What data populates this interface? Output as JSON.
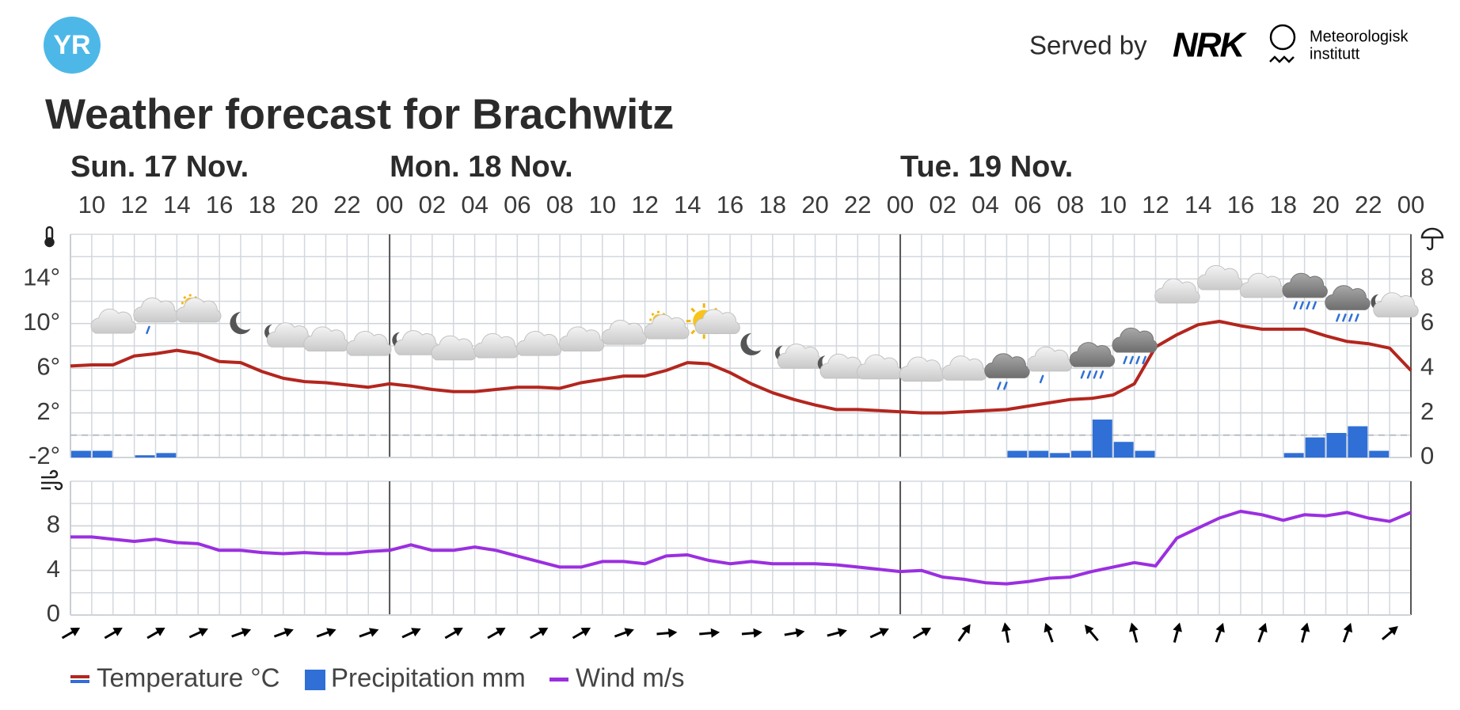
{
  "header": {
    "logo": "YR",
    "served_by": "Served by",
    "nrk": "NRK",
    "met": [
      "Meteorologisk",
      "institutt"
    ],
    "title": "Weather forecast for Brachwitz"
  },
  "chart_data": [
    {
      "type": "line",
      "days": [
        {
          "value": 0,
          "label": "Sun. 17 Nov."
        },
        {
          "value": 15,
          "label": "Mon. 18 Nov."
        },
        {
          "value": 39,
          "label": "Tue. 19 Nov."
        }
      ],
      "xlim": [
        0,
        63
      ],
      "xticks": [
        {
          "value": 1,
          "label": "10"
        },
        {
          "value": 3,
          "label": "12"
        },
        {
          "value": 5,
          "label": "14"
        },
        {
          "value": 7,
          "label": "16"
        },
        {
          "value": 9,
          "label": "18"
        },
        {
          "value": 11,
          "label": "20"
        },
        {
          "value": 13,
          "label": "22"
        },
        {
          "value": 15,
          "label": "00"
        },
        {
          "value": 17,
          "label": "02"
        },
        {
          "value": 19,
          "label": "04"
        },
        {
          "value": 21,
          "label": "06"
        },
        {
          "value": 23,
          "label": "08"
        },
        {
          "value": 25,
          "label": "10"
        },
        {
          "value": 27,
          "label": "12"
        },
        {
          "value": 29,
          "label": "14"
        },
        {
          "value": 31,
          "label": "16"
        },
        {
          "value": 33,
          "label": "18"
        },
        {
          "value": 35,
          "label": "20"
        },
        {
          "value": 37,
          "label": "22"
        },
        {
          "value": 39,
          "label": "00"
        },
        {
          "value": 41,
          "label": "02"
        },
        {
          "value": 43,
          "label": "04"
        },
        {
          "value": 45,
          "label": "06"
        },
        {
          "value": 47,
          "label": "08"
        },
        {
          "value": 49,
          "label": "10"
        },
        {
          "value": 51,
          "label": "12"
        },
        {
          "value": 53,
          "label": "14"
        },
        {
          "value": 55,
          "label": "16"
        },
        {
          "value": 57,
          "label": "18"
        },
        {
          "value": 59,
          "label": "20"
        },
        {
          "value": 61,
          "label": "22"
        },
        {
          "value": 63,
          "label": "00"
        }
      ],
      "ylim": [
        -2,
        18
      ],
      "yticks": [
        {
          "value": -2,
          "label": "-2°"
        },
        {
          "value": 2,
          "label": "2°"
        },
        {
          "value": 6,
          "label": "6°"
        },
        {
          "value": 10,
          "label": "10°"
        },
        {
          "value": 14,
          "label": "14°"
        }
      ],
      "y2lim": [
        0,
        10
      ],
      "y2ticks": [
        0,
        2,
        4,
        6,
        8
      ],
      "reference_line": 0,
      "grid": true,
      "series": [
        {
          "name": "Temperature °C",
          "color": "#b3261e",
          "values": [
            6.2,
            6.3,
            6.3,
            7.1,
            7.3,
            7.6,
            7.3,
            6.6,
            6.5,
            5.7,
            5.1,
            4.8,
            4.7,
            4.5,
            4.3,
            4.6,
            4.4,
            4.1,
            3.9,
            3.9,
            4.1,
            4.3,
            4.3,
            4.2,
            4.7,
            5.0,
            5.3,
            5.3,
            5.8,
            6.5,
            6.4,
            5.6,
            4.6,
            3.8,
            3.2,
            2.7,
            2.3,
            2.3,
            2.2,
            2.1,
            2.0,
            2.0,
            2.1,
            2.2,
            2.3,
            2.6,
            2.9,
            3.2,
            3.3,
            3.6,
            4.6,
            7.9,
            9.0,
            9.9,
            10.2,
            9.8,
            9.5,
            9.5,
            9.5,
            8.9,
            8.4,
            8.2,
            7.8,
            5.8
          ]
        },
        {
          "name": "Precipitation mm",
          "color": "#2f6fd6",
          "type": "bar",
          "axis": "y2",
          "values": [
            0.3,
            0.3,
            0,
            0.1,
            0.2,
            0,
            0,
            0,
            0,
            0,
            0,
            0,
            0,
            0,
            0,
            0,
            0,
            0,
            0,
            0,
            0,
            0,
            0,
            0,
            0,
            0,
            0,
            0,
            0,
            0,
            0,
            0,
            0,
            0,
            0,
            0,
            0,
            0,
            0,
            0,
            0,
            0,
            0,
            0,
            0.3,
            0.3,
            0.2,
            0.3,
            1.7,
            0.7,
            0.3,
            0,
            0,
            0,
            0,
            0,
            0,
            0.2,
            0.9,
            1.1,
            1.4,
            0.3,
            0
          ]
        }
      ]
    },
    {
      "type": "line",
      "xlim": [
        0,
        63
      ],
      "ylim": [
        0,
        12
      ],
      "yticks": [
        0,
        4,
        8
      ],
      "grid": true,
      "series": [
        {
          "name": "Wind m/s",
          "color": "#9b2fe0",
          "values": [
            7.0,
            7.0,
            6.8,
            6.6,
            6.8,
            6.5,
            6.4,
            5.8,
            5.8,
            5.6,
            5.5,
            5.6,
            5.5,
            5.5,
            5.7,
            5.8,
            6.3,
            5.8,
            5.8,
            6.1,
            5.8,
            5.3,
            4.8,
            4.3,
            4.3,
            4.8,
            4.8,
            4.6,
            5.3,
            5.4,
            4.9,
            4.6,
            4.8,
            4.6,
            4.6,
            4.6,
            4.5,
            4.3,
            4.1,
            3.9,
            4.0,
            3.4,
            3.2,
            2.9,
            2.8,
            3.0,
            3.3,
            3.4,
            3.9,
            4.3,
            4.7,
            4.4,
            6.9,
            7.8,
            8.7,
            9.3,
            9.0,
            8.5,
            9.0,
            8.9,
            9.2,
            8.7,
            8.4,
            9.2
          ]
        }
      ],
      "wind_direction_deg": [
        60,
        60,
        60,
        65,
        70,
        70,
        70,
        70,
        65,
        60,
        60,
        60,
        60,
        70,
        85,
        85,
        85,
        80,
        75,
        65,
        60,
        35,
        350,
        340,
        320,
        345,
        15,
        20,
        20,
        15,
        20,
        50
      ]
    }
  ]
}
